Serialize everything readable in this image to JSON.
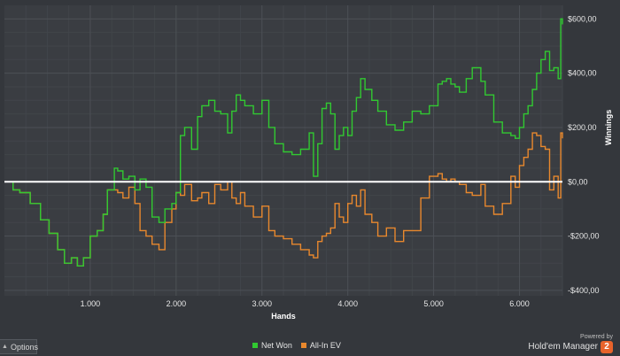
{
  "chart_data": {
    "type": "line",
    "xlabel": "Hands",
    "ylabel": "Winnings",
    "xlim": [
      0,
      6500
    ],
    "ylim": [
      -420,
      650
    ],
    "x_ticks": [
      1000,
      2000,
      3000,
      4000,
      5000,
      6000
    ],
    "x_tick_labels": [
      "1.000",
      "2.000",
      "3.000",
      "4.000",
      "5.000",
      "6.000"
    ],
    "y_ticks": [
      600,
      400,
      200,
      0,
      -200,
      -400
    ],
    "y_tick_labels": [
      "$600,00",
      "$400,00",
      "$200,00",
      "$0,00",
      "-$200,00",
      "-$400,00"
    ],
    "grid": true,
    "zero_line": true,
    "series": [
      {
        "name": "Net Won",
        "color": "#31c931",
        "x": [
          0,
          100,
          180,
          300,
          420,
          520,
          620,
          700,
          780,
          850,
          920,
          1000,
          1080,
          1150,
          1200,
          1280,
          1320,
          1380,
          1450,
          1520,
          1580,
          1650,
          1720,
          1800,
          1870,
          1950,
          2000,
          2050,
          2100,
          2180,
          2250,
          2300,
          2380,
          2450,
          2520,
          2600,
          2650,
          2700,
          2750,
          2800,
          2900,
          3000,
          3080,
          3150,
          3250,
          3350,
          3450,
          3550,
          3600,
          3650,
          3700,
          3750,
          3800,
          3850,
          3900,
          3950,
          4000,
          4050,
          4100,
          4150,
          4200,
          4280,
          4350,
          4450,
          4550,
          4650,
          4750,
          4850,
          4950,
          5050,
          5100,
          5150,
          5200,
          5250,
          5300,
          5380,
          5450,
          5550,
          5600,
          5700,
          5800,
          5900,
          5950,
          6000,
          6050,
          6100,
          6150,
          6200,
          6250,
          6300,
          6350,
          6400,
          6450,
          6480,
          6500
        ],
        "y": [
          0,
          -30,
          -40,
          -80,
          -140,
          -190,
          -250,
          -300,
          -280,
          -310,
          -280,
          -200,
          -180,
          -120,
          -30,
          50,
          40,
          10,
          20,
          -30,
          10,
          -20,
          -130,
          -150,
          -100,
          -80,
          -40,
          170,
          200,
          120,
          240,
          280,
          300,
          260,
          250,
          180,
          260,
          320,
          300,
          280,
          250,
          300,
          200,
          140,
          110,
          100,
          120,
          180,
          20,
          140,
          270,
          290,
          250,
          120,
          170,
          200,
          170,
          260,
          310,
          380,
          340,
          300,
          260,
          210,
          190,
          220,
          260,
          250,
          280,
          360,
          370,
          380,
          360,
          350,
          330,
          380,
          420,
          370,
          320,
          220,
          180,
          170,
          160,
          200,
          250,
          280,
          340,
          400,
          450,
          480,
          410,
          420,
          380,
          600,
          580
        ]
      },
      {
        "name": "All-In EV",
        "color": "#e8882d",
        "x": [
          0,
          100,
          180,
          300,
          420,
          520,
          620,
          700,
          780,
          850,
          920,
          1000,
          1080,
          1150,
          1200,
          1280,
          1320,
          1380,
          1450,
          1520,
          1580,
          1650,
          1720,
          1800,
          1870,
          1950,
          2000,
          2050,
          2100,
          2180,
          2250,
          2300,
          2380,
          2450,
          2520,
          2600,
          2650,
          2700,
          2750,
          2800,
          2900,
          3000,
          3080,
          3150,
          3250,
          3350,
          3450,
          3550,
          3600,
          3650,
          3700,
          3750,
          3800,
          3850,
          3900,
          3950,
          4000,
          4050,
          4100,
          4150,
          4200,
          4280,
          4350,
          4450,
          4550,
          4650,
          4750,
          4850,
          4950,
          5050,
          5100,
          5150,
          5200,
          5250,
          5300,
          5380,
          5450,
          5550,
          5600,
          5700,
          5800,
          5900,
          5950,
          6000,
          6050,
          6100,
          6150,
          6200,
          6250,
          6300,
          6350,
          6400,
          6450,
          6480,
          6500
        ],
        "y": [
          0,
          -30,
          -40,
          -80,
          -140,
          -190,
          -250,
          -300,
          -280,
          -310,
          -280,
          -200,
          -180,
          -120,
          -30,
          -30,
          -40,
          -60,
          -20,
          -80,
          -180,
          -200,
          -230,
          -250,
          -150,
          -100,
          -40,
          -50,
          -10,
          -70,
          -60,
          -40,
          -80,
          -10,
          -30,
          0,
          -60,
          -80,
          -40,
          -90,
          -130,
          -90,
          -180,
          -200,
          -210,
          -230,
          -250,
          -270,
          -280,
          -220,
          -200,
          -190,
          -170,
          -80,
          -130,
          -150,
          -80,
          -50,
          -90,
          -30,
          -120,
          -150,
          -200,
          -170,
          -220,
          -180,
          -180,
          -60,
          20,
          30,
          10,
          0,
          10,
          0,
          -10,
          -40,
          -50,
          -10,
          -90,
          -120,
          -80,
          20,
          -20,
          60,
          90,
          120,
          180,
          170,
          130,
          120,
          -30,
          20,
          -60,
          180,
          160
        ]
      }
    ]
  },
  "legend": {
    "items": [
      {
        "label": "Net Won",
        "color": "#31c931"
      },
      {
        "label": "All-In EV",
        "color": "#e8882d"
      }
    ]
  },
  "footer": {
    "options_label": "Options",
    "powered_by": "Powered by",
    "brand_name": "Hold'em Manager",
    "brand_badge": "2"
  }
}
